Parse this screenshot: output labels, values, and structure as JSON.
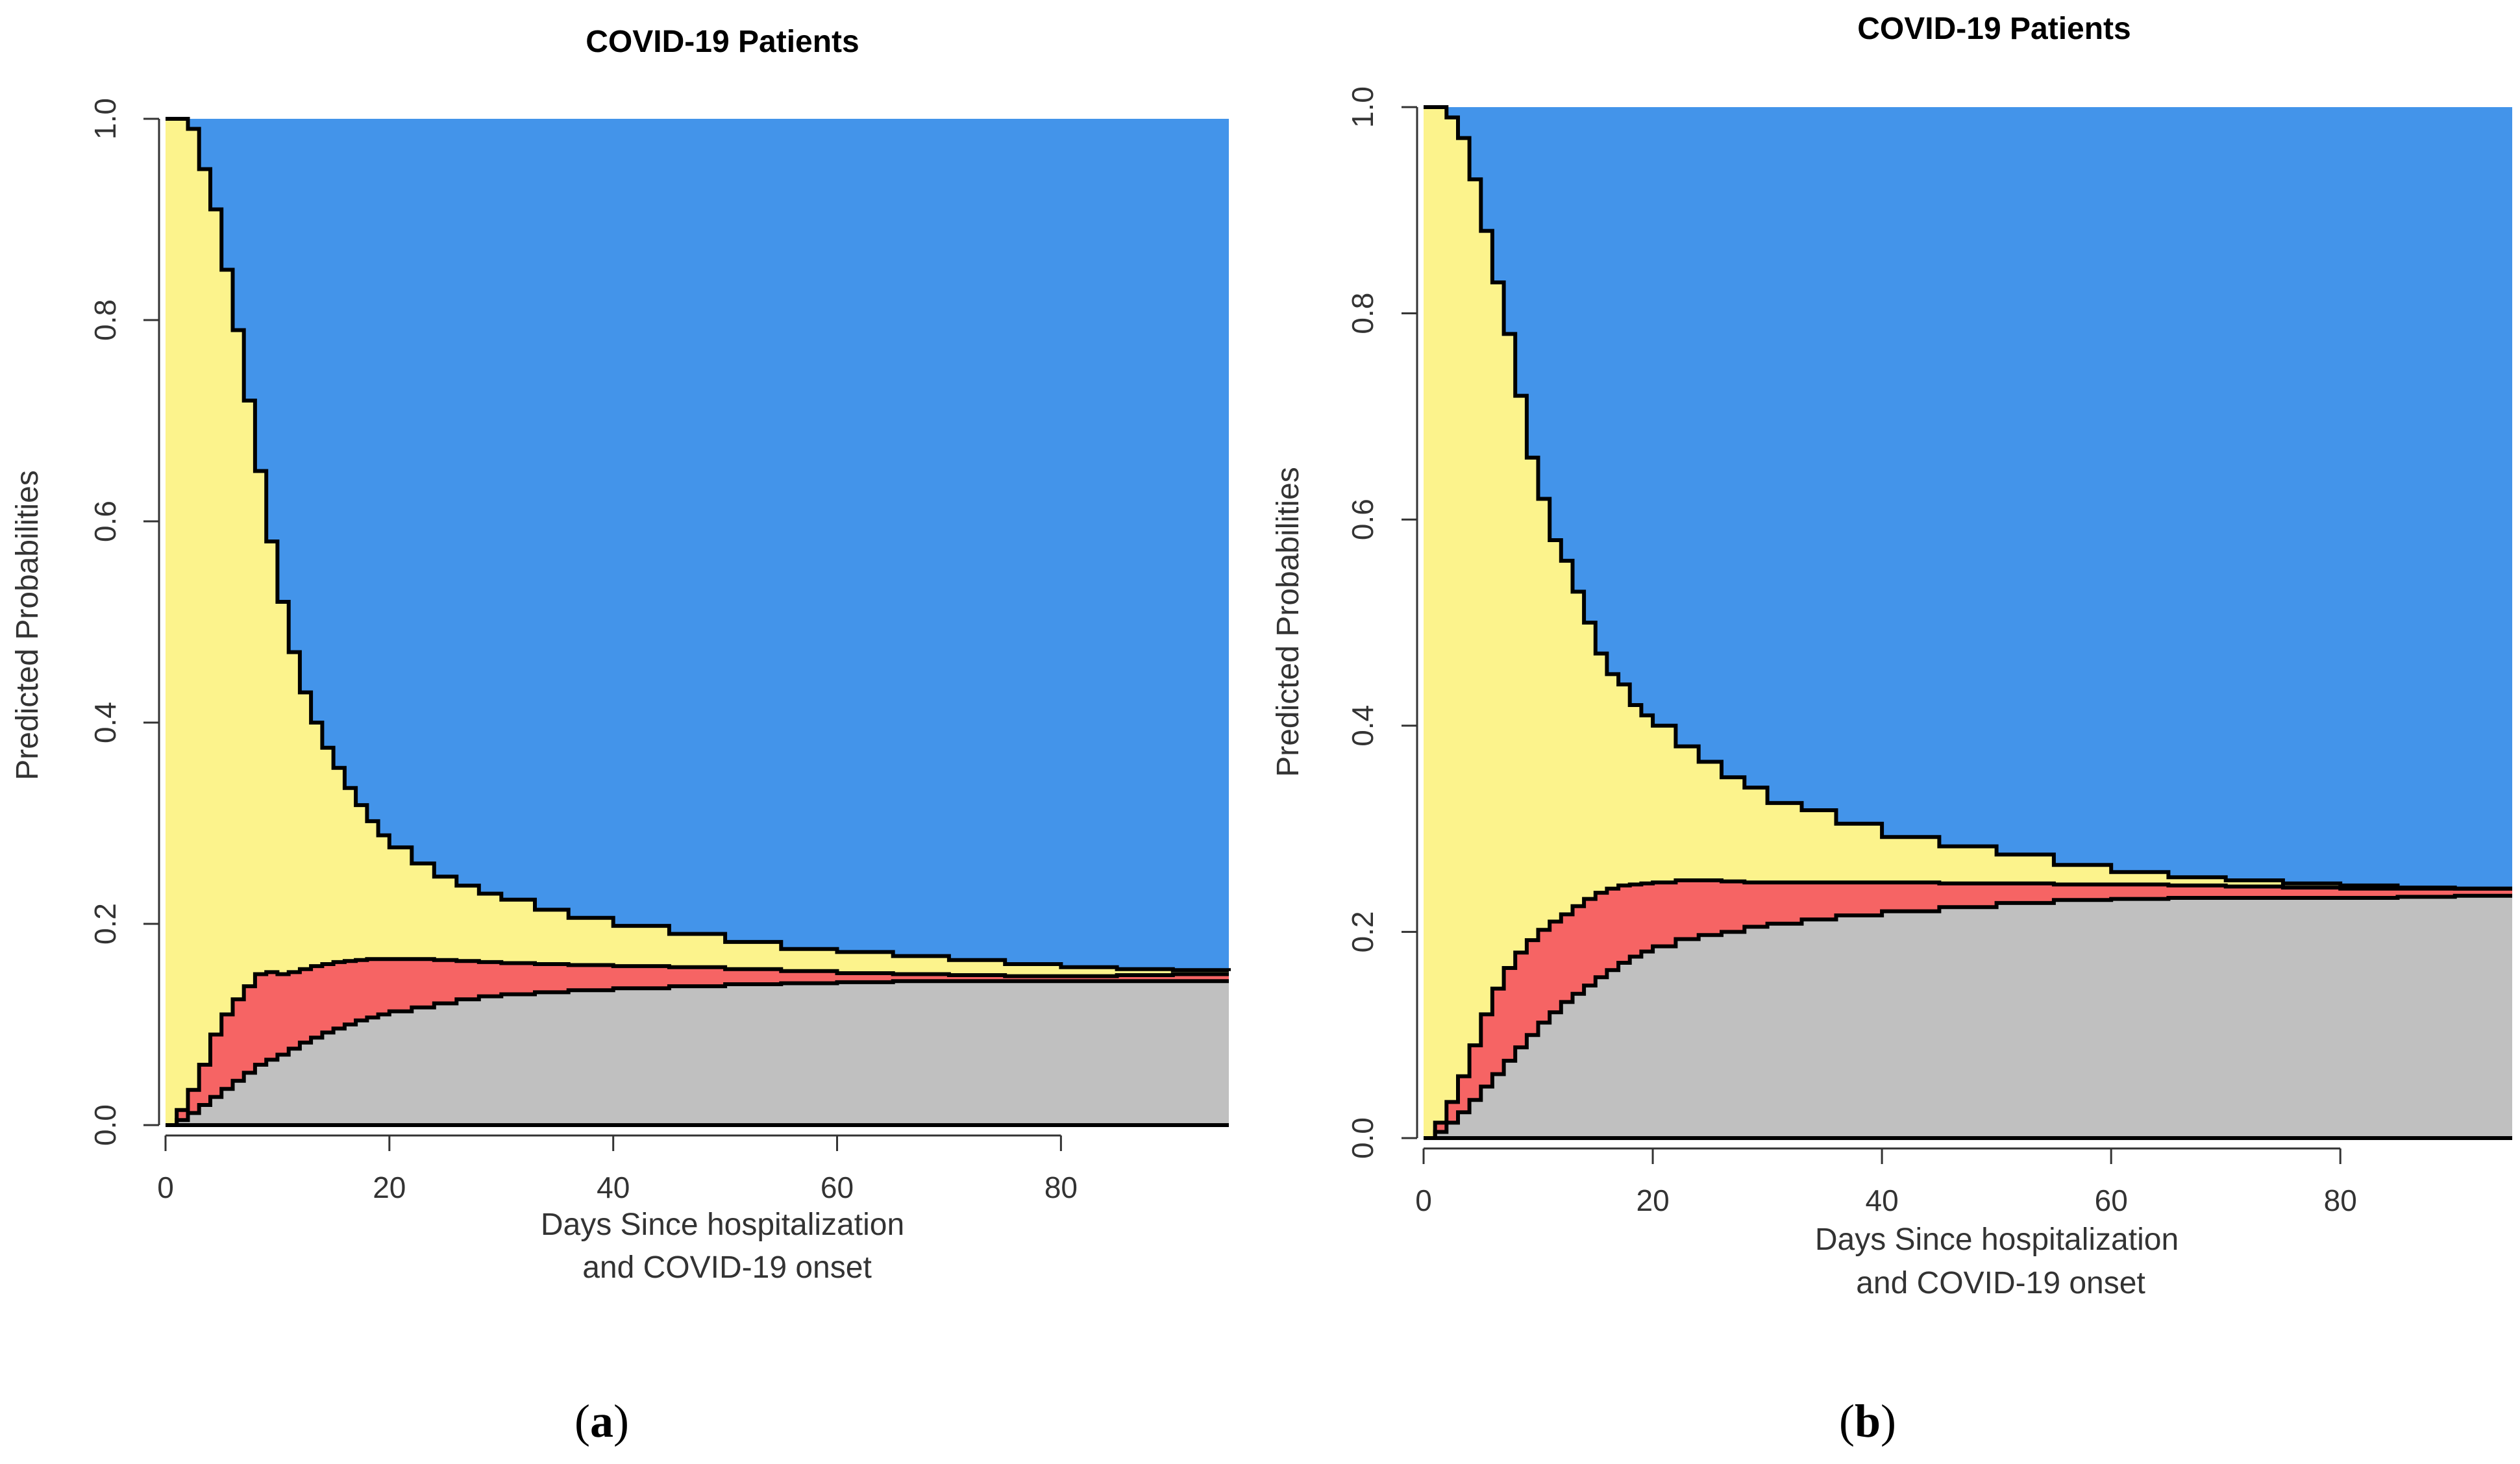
{
  "chart_data": [
    {
      "type": "area",
      "title": "COVID-19 Patients",
      "xlabel_line1": "Days Since hospitalization",
      "xlabel_line2": "and COVID-19 onset",
      "ylabel": "Predicted Probabilities",
      "panel_label": "a",
      "xlim": [
        0,
        95
      ],
      "ylim": [
        0,
        1
      ],
      "x_ticks": [
        0,
        20,
        40,
        60,
        80
      ],
      "y_ticks": [
        "0.0",
        "0.2",
        "0.4",
        "0.6",
        "0.8",
        "1.0"
      ],
      "stacking_order": [
        "gray",
        "red",
        "yellow",
        "blue"
      ],
      "colors": {
        "gray": "#c0c0c0",
        "red": "#f66464",
        "yellow": "#fcf38c",
        "blue": "#4394ea",
        "line": "#000000"
      },
      "x": [
        0,
        1,
        2,
        3,
        4,
        5,
        6,
        7,
        8,
        9,
        10,
        11,
        12,
        13,
        14,
        15,
        16,
        17,
        18,
        19,
        20,
        22,
        24,
        26,
        28,
        30,
        33,
        36,
        40,
        45,
        50,
        55,
        60,
        65,
        70,
        75,
        80,
        85,
        90,
        95
      ],
      "boundary_gray_red": [
        0.0,
        0.005,
        0.012,
        0.02,
        0.028,
        0.036,
        0.044,
        0.052,
        0.06,
        0.065,
        0.07,
        0.076,
        0.082,
        0.087,
        0.092,
        0.096,
        0.1,
        0.104,
        0.107,
        0.11,
        0.113,
        0.117,
        0.121,
        0.125,
        0.128,
        0.13,
        0.132,
        0.134,
        0.136,
        0.138,
        0.14,
        0.141,
        0.142,
        0.143,
        0.143,
        0.143,
        0.143,
        0.143,
        0.143,
        0.143
      ],
      "boundary_red_yellow": [
        0.0,
        0.015,
        0.035,
        0.06,
        0.09,
        0.11,
        0.125,
        0.138,
        0.15,
        0.152,
        0.15,
        0.152,
        0.155,
        0.158,
        0.16,
        0.162,
        0.163,
        0.164,
        0.165,
        0.165,
        0.165,
        0.165,
        0.164,
        0.163,
        0.162,
        0.161,
        0.16,
        0.159,
        0.158,
        0.157,
        0.155,
        0.153,
        0.151,
        0.15,
        0.149,
        0.148,
        0.148,
        0.149,
        0.15,
        0.15
      ],
      "boundary_yellow_blue": [
        1.0,
        1.0,
        0.99,
        0.95,
        0.91,
        0.85,
        0.79,
        0.72,
        0.65,
        0.58,
        0.52,
        0.47,
        0.43,
        0.4,
        0.375,
        0.355,
        0.335,
        0.318,
        0.302,
        0.288,
        0.276,
        0.26,
        0.247,
        0.238,
        0.23,
        0.224,
        0.214,
        0.206,
        0.198,
        0.19,
        0.182,
        0.175,
        0.172,
        0.168,
        0.164,
        0.16,
        0.157,
        0.155,
        0.154,
        0.153
      ]
    },
    {
      "type": "area",
      "title": "COVID-19 Patients",
      "xlabel_line1": "Days Since hospitalization",
      "xlabel_line2": "and COVID-19 onset",
      "ylabel": "Predicted Probabilities",
      "panel_label": "b",
      "xlim": [
        0,
        95
      ],
      "ylim": [
        0,
        1
      ],
      "x_ticks": [
        0,
        20,
        40,
        60,
        80
      ],
      "y_ticks": [
        "0.0",
        "0.2",
        "0.4",
        "0.6",
        "0.8",
        "1.0"
      ],
      "stacking_order": [
        "gray",
        "red",
        "yellow",
        "blue"
      ],
      "colors": {
        "gray": "#c0c0c0",
        "red": "#f66464",
        "yellow": "#fcf38c",
        "blue": "#4394ea",
        "line": "#000000"
      },
      "x": [
        0,
        1,
        2,
        3,
        4,
        5,
        6,
        7,
        8,
        9,
        10,
        11,
        12,
        13,
        14,
        15,
        16,
        17,
        18,
        19,
        20,
        22,
        24,
        26,
        28,
        30,
        33,
        36,
        40,
        45,
        50,
        55,
        60,
        65,
        70,
        75,
        80,
        85,
        90,
        95
      ],
      "boundary_gray_red": [
        0.0,
        0.006,
        0.015,
        0.025,
        0.037,
        0.05,
        0.062,
        0.075,
        0.088,
        0.1,
        0.112,
        0.122,
        0.132,
        0.14,
        0.148,
        0.156,
        0.163,
        0.17,
        0.176,
        0.181,
        0.186,
        0.193,
        0.197,
        0.2,
        0.205,
        0.208,
        0.212,
        0.216,
        0.22,
        0.224,
        0.228,
        0.231,
        0.232,
        0.233,
        0.233,
        0.233,
        0.233,
        0.234,
        0.235,
        0.235
      ],
      "boundary_red_yellow": [
        0.0,
        0.015,
        0.035,
        0.06,
        0.09,
        0.12,
        0.145,
        0.165,
        0.18,
        0.192,
        0.202,
        0.21,
        0.217,
        0.225,
        0.232,
        0.238,
        0.242,
        0.245,
        0.246,
        0.247,
        0.248,
        0.25,
        0.25,
        0.249,
        0.248,
        0.248,
        0.248,
        0.248,
        0.248,
        0.247,
        0.247,
        0.246,
        0.246,
        0.245,
        0.244,
        0.243,
        0.242,
        0.242,
        0.242,
        0.242
      ],
      "boundary_yellow_blue": [
        1.0,
        1.0,
        0.99,
        0.97,
        0.93,
        0.88,
        0.83,
        0.78,
        0.72,
        0.66,
        0.62,
        0.58,
        0.56,
        0.53,
        0.5,
        0.47,
        0.45,
        0.44,
        0.42,
        0.41,
        0.4,
        0.38,
        0.365,
        0.35,
        0.34,
        0.325,
        0.318,
        0.305,
        0.292,
        0.283,
        0.275,
        0.265,
        0.258,
        0.253,
        0.25,
        0.247,
        0.245,
        0.243,
        0.242,
        0.242
      ]
    }
  ]
}
